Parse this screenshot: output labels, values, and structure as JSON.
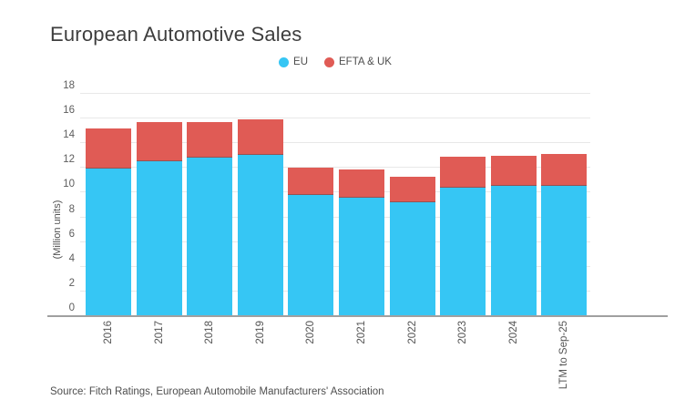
{
  "title": "European Automotive Sales",
  "source": "Source: Fitch Ratings, European Automobile Manufacturers' Association",
  "colors": {
    "eu_blue": "#36c6f4",
    "efta_uk_red": "#e05b55",
    "axis_line": "#a0a0a0",
    "gridline": "#e8e8e8"
  },
  "legend": [
    {
      "label": "EU",
      "color": "#36c6f4"
    },
    {
      "label": "EFTA & UK",
      "color": "#e05b55"
    }
  ],
  "chart_data": {
    "type": "bar",
    "stacked": true,
    "title": "European Automotive Sales",
    "ylabel": "(Million units)",
    "xlabel": "",
    "ylim": [
      0,
      18
    ],
    "yticks": [
      0,
      2,
      4,
      6,
      8,
      10,
      12,
      14,
      16,
      18
    ],
    "grid": true,
    "legend_position": "top",
    "categories": [
      "2016",
      "2017",
      "2018",
      "2019",
      "2020",
      "2021",
      "2022",
      "2023",
      "2024",
      "LTM to Sep-25"
    ],
    "series": [
      {
        "name": "EU",
        "color": "#36c6f4",
        "values": [
          12.0,
          12.6,
          12.9,
          13.1,
          9.9,
          9.7,
          9.3,
          10.5,
          10.6,
          10.6
        ]
      },
      {
        "name": "EFTA & UK",
        "color": "#e05b55",
        "values": [
          3.2,
          3.1,
          2.8,
          2.8,
          2.1,
          2.2,
          2.0,
          2.4,
          2.4,
          2.5
        ]
      }
    ]
  }
}
